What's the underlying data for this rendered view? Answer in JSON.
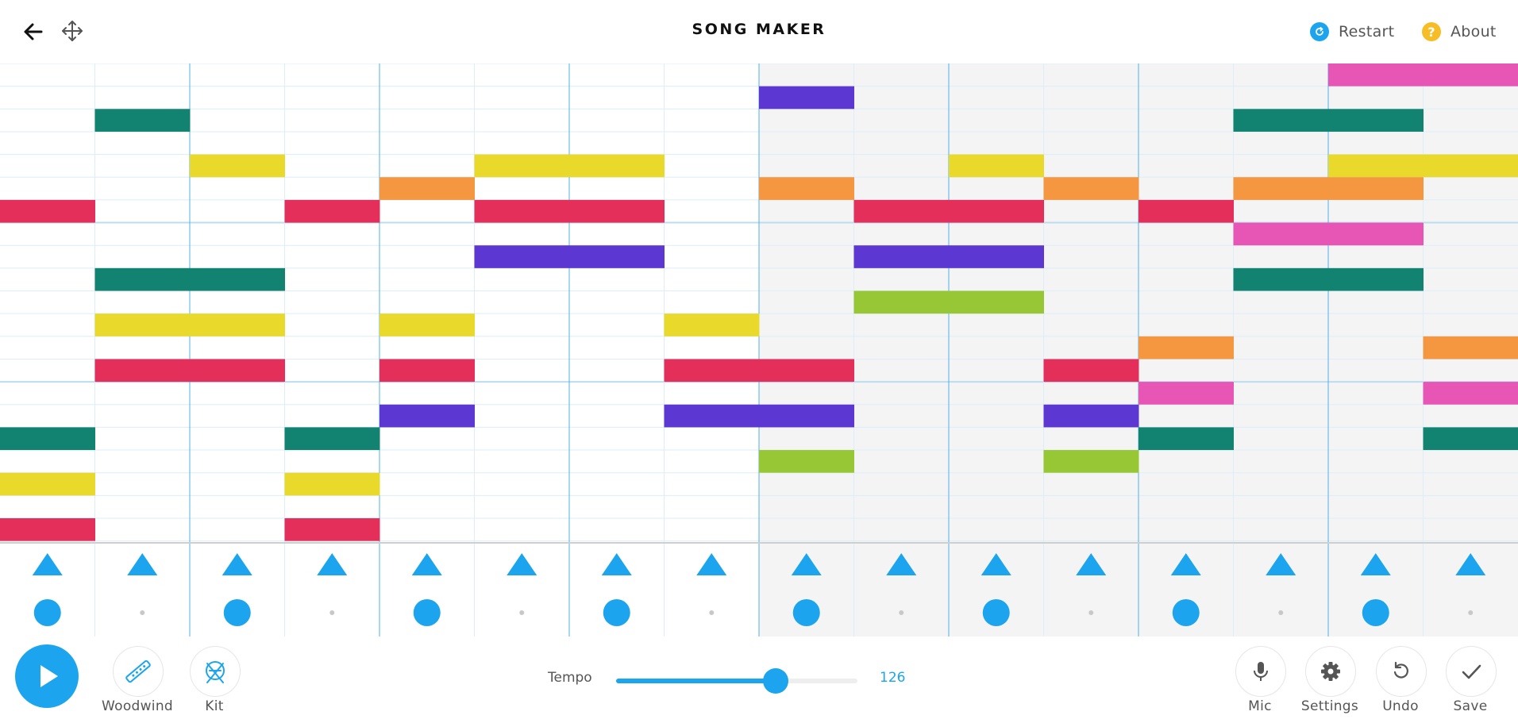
{
  "header": {
    "title": "SONG MAKER",
    "restart_label": "Restart",
    "about_label": "About",
    "back_icon": "arrow-left-icon",
    "move_icon": "move-arrows-icon"
  },
  "colors": {
    "accent": "#1ca5ee",
    "grid_line": "#dbeef9",
    "grid_bar_line": "#4fb1ea",
    "shade": "#f4f4f4",
    "about_icon": "#f6bd27",
    "notes": {
      "magenta": "#e856b5",
      "purple": "#5c37d2",
      "teal": "#128271",
      "yellow": "#e9d92b",
      "orange": "#f59640",
      "red": "#e42f5a",
      "lime": "#97c734"
    }
  },
  "grid": {
    "columns": 16,
    "rows": 21,
    "shaded_from_column": 8,
    "octave_rows": [
      7,
      14
    ],
    "notes": [
      {
        "col": 0,
        "row": 6,
        "color": "red"
      },
      {
        "col": 0,
        "row": 16,
        "color": "teal"
      },
      {
        "col": 0,
        "row": 18,
        "color": "yellow"
      },
      {
        "col": 0,
        "row": 20,
        "color": "red"
      },
      {
        "col": 1,
        "row": 2,
        "color": "teal"
      },
      {
        "col": 1,
        "row": 9,
        "color": "teal"
      },
      {
        "col": 1,
        "row": 11,
        "color": "yellow"
      },
      {
        "col": 1,
        "row": 13,
        "color": "red"
      },
      {
        "col": 2,
        "row": 4,
        "color": "yellow"
      },
      {
        "col": 2,
        "row": 9,
        "color": "teal"
      },
      {
        "col": 2,
        "row": 11,
        "color": "yellow"
      },
      {
        "col": 2,
        "row": 13,
        "color": "red"
      },
      {
        "col": 3,
        "row": 6,
        "color": "red"
      },
      {
        "col": 3,
        "row": 16,
        "color": "teal"
      },
      {
        "col": 3,
        "row": 18,
        "color": "yellow"
      },
      {
        "col": 3,
        "row": 20,
        "color": "red"
      },
      {
        "col": 4,
        "row": 5,
        "color": "orange"
      },
      {
        "col": 4,
        "row": 11,
        "color": "yellow"
      },
      {
        "col": 4,
        "row": 13,
        "color": "red"
      },
      {
        "col": 4,
        "row": 15,
        "color": "purple"
      },
      {
        "col": 5,
        "row": 4,
        "color": "yellow"
      },
      {
        "col": 5,
        "row": 6,
        "color": "red"
      },
      {
        "col": 5,
        "row": 8,
        "color": "purple"
      },
      {
        "col": 6,
        "row": 4,
        "color": "yellow"
      },
      {
        "col": 6,
        "row": 6,
        "color": "red"
      },
      {
        "col": 6,
        "row": 8,
        "color": "purple"
      },
      {
        "col": 7,
        "row": 11,
        "color": "yellow"
      },
      {
        "col": 7,
        "row": 13,
        "color": "red"
      },
      {
        "col": 7,
        "row": 15,
        "color": "purple"
      },
      {
        "col": 8,
        "row": 1,
        "color": "purple"
      },
      {
        "col": 8,
        "row": 5,
        "color": "orange"
      },
      {
        "col": 8,
        "row": 13,
        "color": "red"
      },
      {
        "col": 8,
        "row": 15,
        "color": "purple"
      },
      {
        "col": 8,
        "row": 17,
        "color": "lime"
      },
      {
        "col": 9,
        "row": 6,
        "color": "red"
      },
      {
        "col": 9,
        "row": 8,
        "color": "purple"
      },
      {
        "col": 9,
        "row": 10,
        "color": "lime"
      },
      {
        "col": 10,
        "row": 4,
        "color": "yellow"
      },
      {
        "col": 10,
        "row": 6,
        "color": "red"
      },
      {
        "col": 10,
        "row": 8,
        "color": "purple"
      },
      {
        "col": 10,
        "row": 10,
        "color": "lime"
      },
      {
        "col": 11,
        "row": 5,
        "color": "orange"
      },
      {
        "col": 11,
        "row": 13,
        "color": "red"
      },
      {
        "col": 11,
        "row": 15,
        "color": "purple"
      },
      {
        "col": 11,
        "row": 17,
        "color": "lime"
      },
      {
        "col": 12,
        "row": 6,
        "color": "red"
      },
      {
        "col": 12,
        "row": 12,
        "color": "orange"
      },
      {
        "col": 12,
        "row": 14,
        "color": "magenta"
      },
      {
        "col": 12,
        "row": 16,
        "color": "teal"
      },
      {
        "col": 13,
        "row": 2,
        "color": "teal"
      },
      {
        "col": 13,
        "row": 5,
        "color": "orange"
      },
      {
        "col": 13,
        "row": 7,
        "color": "magenta"
      },
      {
        "col": 13,
        "row": 9,
        "color": "teal"
      },
      {
        "col": 14,
        "row": 0,
        "color": "magenta"
      },
      {
        "col": 14,
        "row": 2,
        "color": "teal"
      },
      {
        "col": 14,
        "row": 4,
        "color": "yellow"
      },
      {
        "col": 14,
        "row": 5,
        "color": "orange"
      },
      {
        "col": 14,
        "row": 7,
        "color": "magenta"
      },
      {
        "col": 14,
        "row": 9,
        "color": "teal"
      },
      {
        "col": 15,
        "row": 0,
        "color": "magenta"
      },
      {
        "col": 15,
        "row": 4,
        "color": "yellow"
      },
      {
        "col": 15,
        "row": 12,
        "color": "orange"
      },
      {
        "col": 15,
        "row": 14,
        "color": "magenta"
      },
      {
        "col": 15,
        "row": 16,
        "color": "teal"
      }
    ]
  },
  "percussion": {
    "triangles": [
      true,
      true,
      true,
      true,
      true,
      true,
      true,
      true,
      true,
      true,
      true,
      true,
      true,
      true,
      true,
      true
    ],
    "circles": [
      true,
      false,
      true,
      false,
      true,
      false,
      true,
      false,
      true,
      false,
      true,
      false,
      true,
      false,
      true,
      false
    ]
  },
  "controls": {
    "instrument_label": "Woodwind",
    "instrument_icon": "flute-icon",
    "kit_label": "Kit",
    "kit_icon": "drum-kit-icon",
    "tempo_label": "Tempo",
    "tempo_value": "126",
    "tempo_min": 60,
    "tempo_max": 160,
    "mic_label": "Mic",
    "settings_label": "Settings",
    "undo_label": "Undo",
    "save_label": "Save"
  }
}
